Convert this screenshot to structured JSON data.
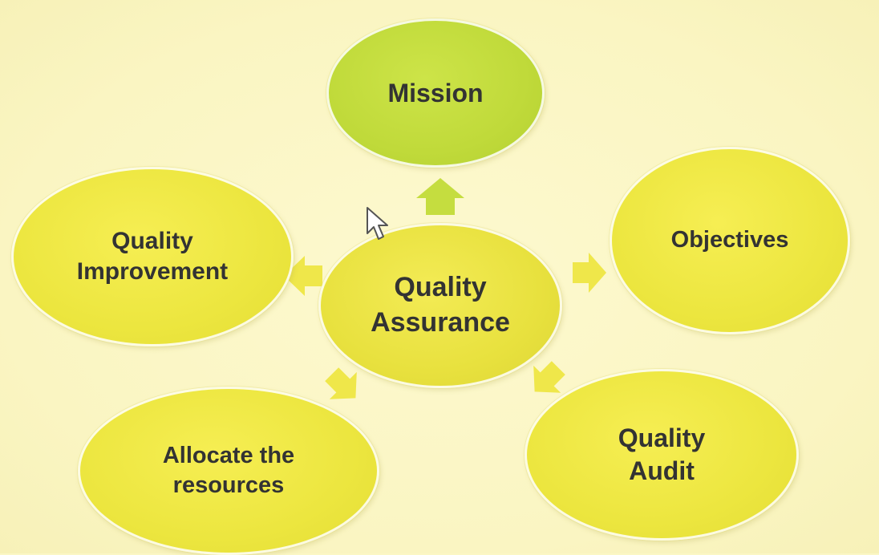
{
  "diagram": {
    "center": {
      "label": "Quality\nAssurance"
    },
    "nodes": {
      "mission": {
        "label": "Mission"
      },
      "objectives": {
        "label": "Objectives"
      },
      "quality_audit": {
        "label": "Quality\nAudit"
      },
      "allocate_resources": {
        "label": "Allocate the\nresources"
      },
      "quality_improvement": {
        "label": "Quality\nImprovement"
      }
    }
  },
  "colors": {
    "background": "#fbf7c5",
    "node_yellow": "#ece63f",
    "node_green": "#c0da3a",
    "arrow_green": "#c5dd3f",
    "arrow_yellow": "#efe74a",
    "text": "#333333"
  },
  "icons": {
    "cursor": "mouse-pointer-icon"
  }
}
